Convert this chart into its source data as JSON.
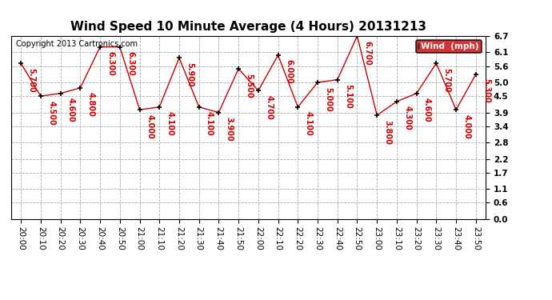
{
  "title": "Wind Speed 10 Minute Average (4 Hours) 20131213",
  "copyright": "Copyright 2013 Cartronics.com",
  "legend_label": "Wind  (mph)",
  "x_labels": [
    "20:00",
    "20:10",
    "20:20",
    "20:30",
    "20:40",
    "20:50",
    "21:00",
    "21:10",
    "21:20",
    "21:30",
    "21:40",
    "21:50",
    "22:00",
    "22:10",
    "22:20",
    "22:30",
    "22:40",
    "22:50",
    "23:00",
    "23:10",
    "23:20",
    "23:30",
    "23:40",
    "23:50"
  ],
  "y_values": [
    5.7,
    4.5,
    4.6,
    4.8,
    6.3,
    6.3,
    4.0,
    4.1,
    5.9,
    4.1,
    3.9,
    5.5,
    4.7,
    6.0,
    4.1,
    5.0,
    5.1,
    6.7,
    3.8,
    4.3,
    4.6,
    5.7,
    4.0,
    5.3
  ],
  "y_labels": [
    0.0,
    0.6,
    1.1,
    1.7,
    2.2,
    2.8,
    3.4,
    3.9,
    4.5,
    5.0,
    5.6,
    6.1,
    6.7
  ],
  "ylim": [
    0.0,
    6.7
  ],
  "line_color": "#cc0000",
  "marker_color": "black",
  "data_label_color": "#cc0000",
  "background_color": "#ffffff",
  "grid_color": "#aaaaaa",
  "title_fontsize": 11,
  "tick_fontsize": 7.5,
  "annotation_fontsize": 7,
  "copyright_fontsize": 7
}
